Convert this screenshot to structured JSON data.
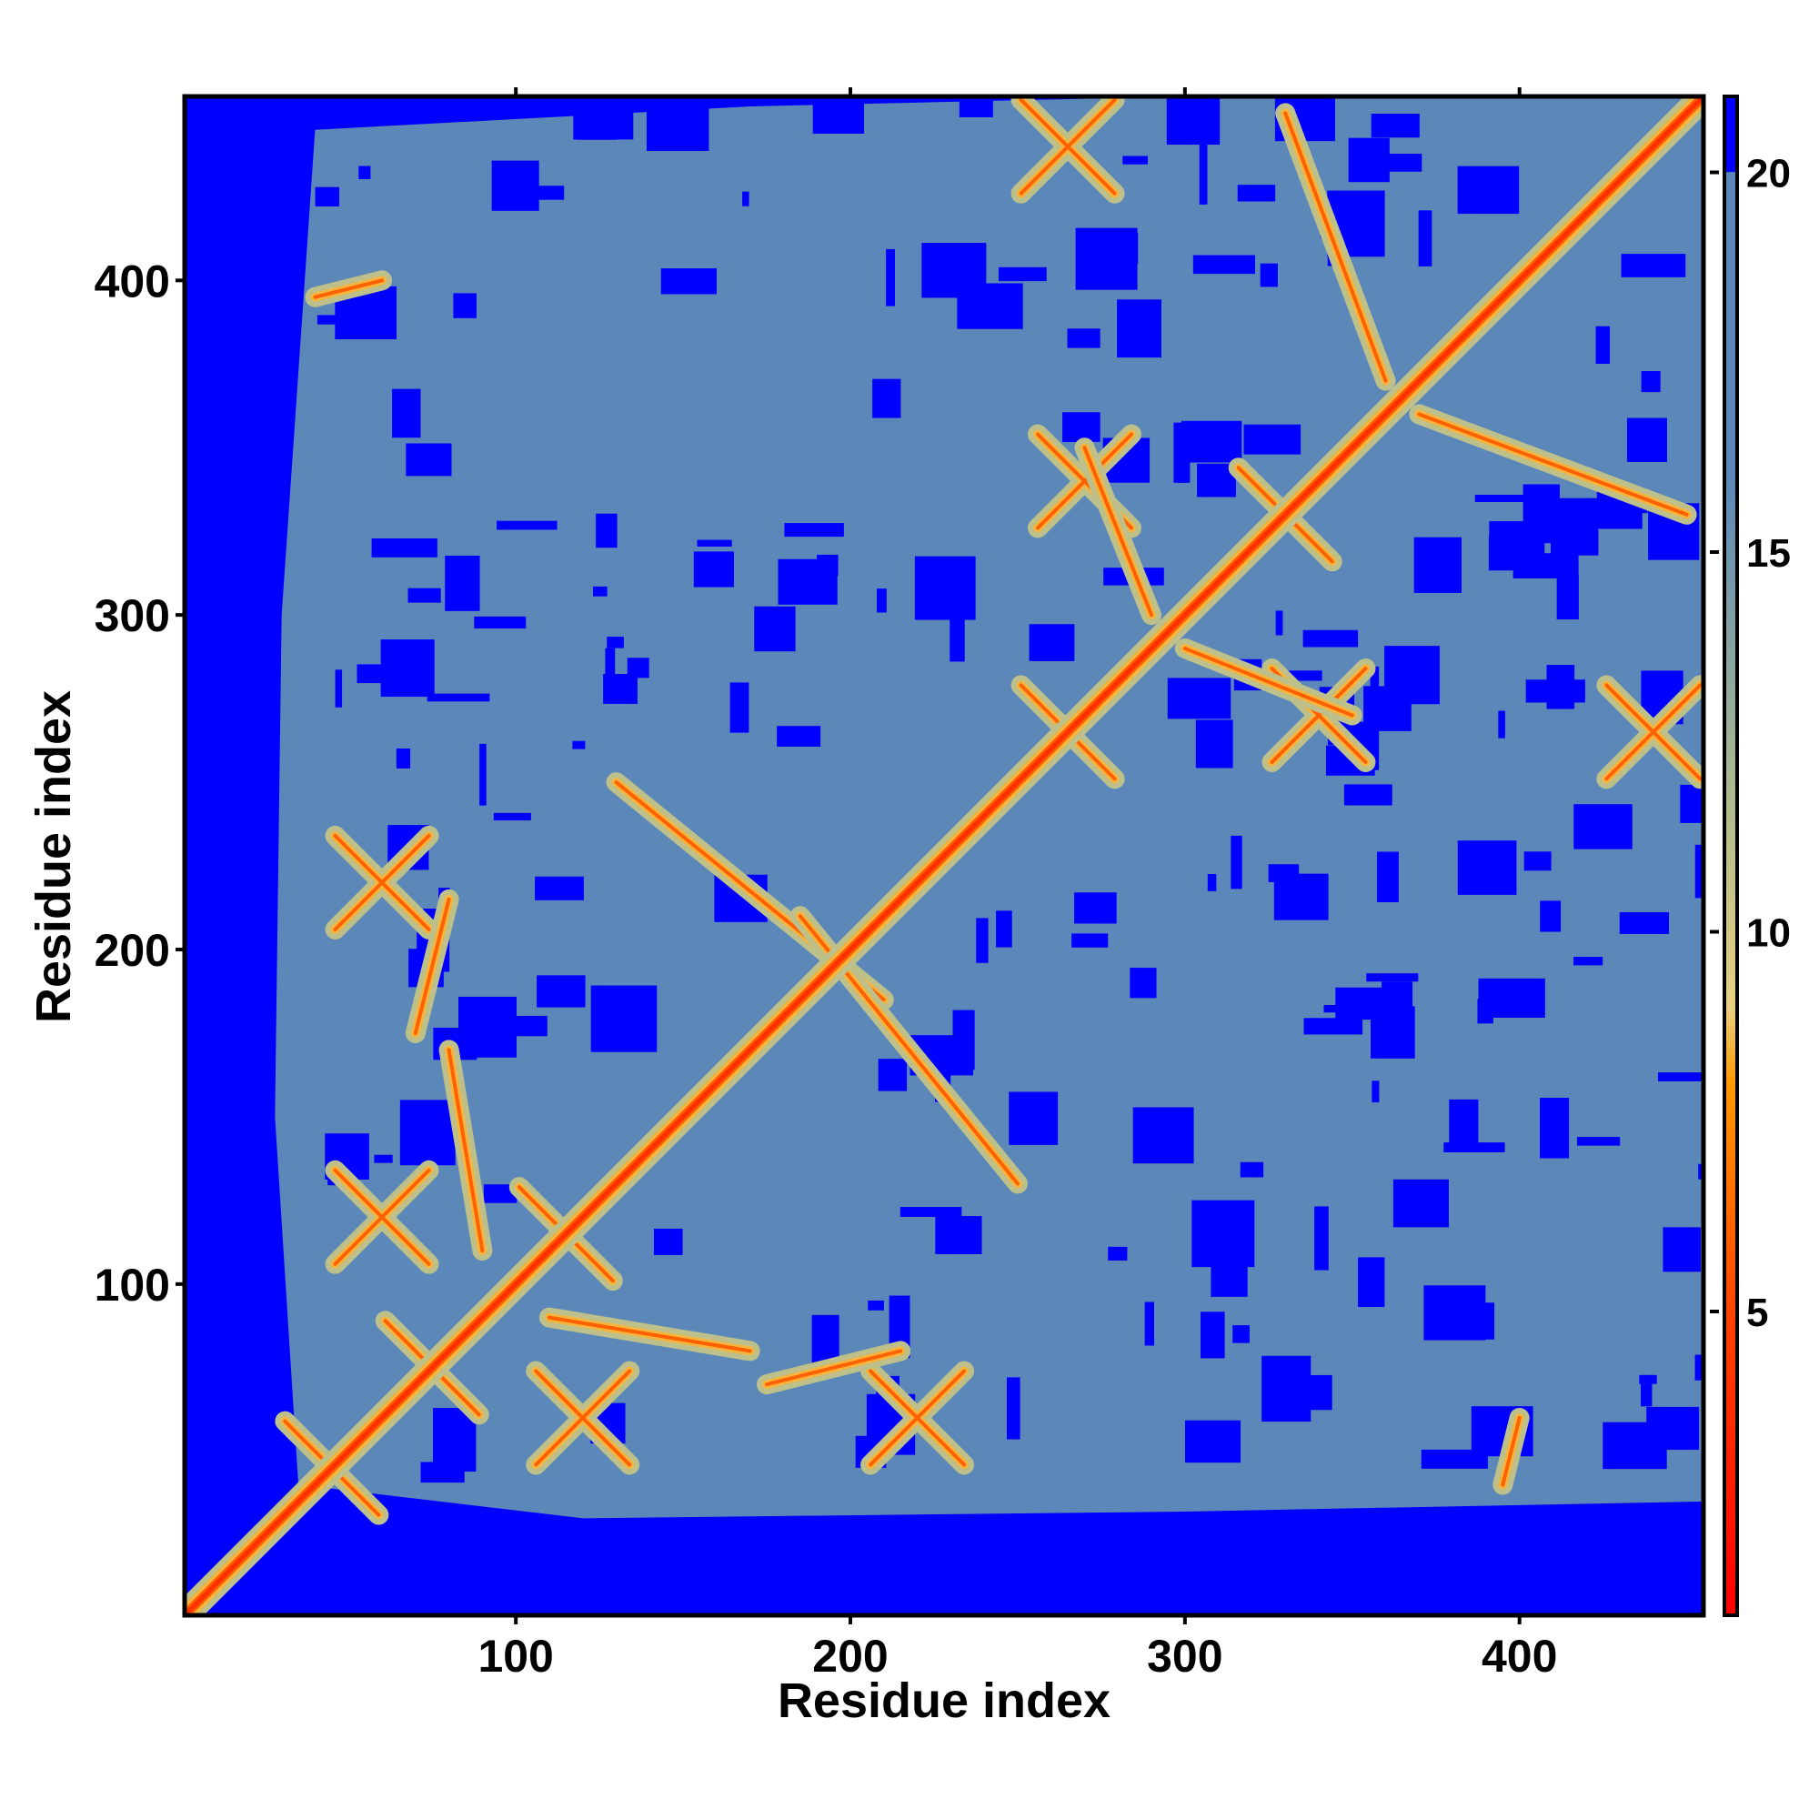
{
  "chart_data": {
    "type": "heatmap",
    "title": "",
    "xlabel": "Residue index",
    "ylabel": "Residue index",
    "xlim": [
      1,
      455
    ],
    "ylim": [
      1,
      455
    ],
    "xticks": [
      100,
      200,
      300,
      400
    ],
    "yticks": [
      100,
      200,
      300,
      400
    ],
    "colorbar": {
      "ticks": [
        5,
        10,
        15,
        20
      ],
      "range": [
        1,
        21
      ],
      "colors": [
        {
          "value": 1,
          "color": "#ff0000"
        },
        {
          "value": 5,
          "color": "#ff4400"
        },
        {
          "value": 8,
          "color": "#ff9900"
        },
        {
          "value": 9,
          "color": "#e8d080"
        },
        {
          "value": 12,
          "color": "#a8b890"
        },
        {
          "value": 16,
          "color": "#5b88b8"
        },
        {
          "value": 20,
          "color": "#5b88b8"
        },
        {
          "value": 20.01,
          "color": "#0000ff"
        },
        {
          "value": 21,
          "color": "#0000ff"
        }
      ]
    },
    "cutoff_value": 20,
    "diagonal_value": 3.8,
    "contact_features": [
      {
        "x": 45,
        "y": 45,
        "kind": "cross"
      },
      {
        "x": 75,
        "y": 75,
        "kind": "cross"
      },
      {
        "x": 115,
        "y": 115,
        "kind": "cross"
      },
      {
        "x": 265,
        "y": 265,
        "kind": "cross"
      },
      {
        "x": 330,
        "y": 330,
        "kind": "cross"
      },
      {
        "x": 60,
        "y": 220,
        "kind": "cross"
      },
      {
        "x": 220,
        "y": 60,
        "kind": "cross"
      },
      {
        "x": 270,
        "y": 340,
        "kind": "cross"
      },
      {
        "x": 340,
        "y": 270,
        "kind": "cross"
      },
      {
        "x": 265,
        "y": 440,
        "kind": "cross"
      },
      {
        "x": 440,
        "y": 265,
        "kind": "cross"
      },
      {
        "x": 60,
        "y": 120,
        "kind": "cross"
      },
      {
        "x": 120,
        "y": 60,
        "kind": "cross"
      }
    ],
    "contact_strands": [
      {
        "x1": 130,
        "y1": 250,
        "x2": 210,
        "y2": 185
      },
      {
        "x1": 185,
        "y1": 210,
        "x2": 250,
        "y2": 130
      },
      {
        "x1": 370,
        "y1": 360,
        "x2": 450,
        "y2": 330
      },
      {
        "x1": 360,
        "y1": 370,
        "x2": 330,
        "y2": 450
      },
      {
        "x1": 110,
        "y1": 90,
        "x2": 170,
        "y2": 80
      },
      {
        "x1": 90,
        "y1": 110,
        "x2": 80,
        "y2": 170
      },
      {
        "x1": 175,
        "y1": 70,
        "x2": 215,
        "y2": 80
      },
      {
        "x1": 70,
        "y1": 175,
        "x2": 80,
        "y2": 215
      },
      {
        "x1": 40,
        "y1": 395,
        "x2": 60,
        "y2": 400
      },
      {
        "x1": 395,
        "y1": 40,
        "x2": 400,
        "y2": 60
      },
      {
        "x1": 300,
        "y1": 290,
        "x2": 350,
        "y2": 270
      },
      {
        "x1": 290,
        "y1": 300,
        "x2": 270,
        "y2": 350
      }
    ]
  }
}
